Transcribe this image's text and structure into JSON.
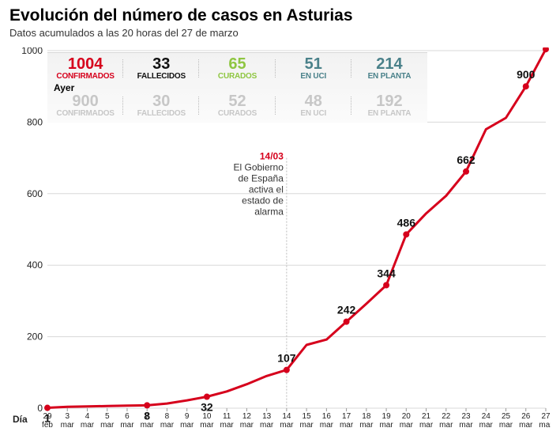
{
  "title": "Evolución del número de casos en Asturias",
  "title_fontsize": 21,
  "subtitle": "Datos acumulados a las 20 horas del 27 de marzo",
  "subtitle_fontsize": 13,
  "subtitle_color": "#333333",
  "stats_today": [
    {
      "value": "1004",
      "label": "CONFIRMADOS",
      "color": "#d6001c"
    },
    {
      "value": "33",
      "label": "FALLECIDOS",
      "color": "#111111"
    },
    {
      "value": "65",
      "label": "CURADOS",
      "color": "#8fc642"
    },
    {
      "value": "51",
      "label": "EN UCI",
      "color": "#4a818a"
    },
    {
      "value": "214",
      "label": "EN PLANTA",
      "color": "#4a818a"
    }
  ],
  "ayer_label": "Ayer",
  "ayer_fontsize": 12,
  "stats_yesterday": [
    {
      "value": "900",
      "label": "CONFIRMADOS",
      "color": "#c7c7c7"
    },
    {
      "value": "30",
      "label": "FALLECIDOS",
      "color": "#c7c7c7"
    },
    {
      "value": "52",
      "label": "CURADOS",
      "color": "#c7c7c7"
    },
    {
      "value": "48",
      "label": "EN UCI",
      "color": "#c7c7c7"
    },
    {
      "value": "192",
      "label": "EN PLANTA",
      "color": "#c7c7c7"
    }
  ],
  "stat_value_fontsize": 20,
  "stat_label_fontsize": 10,
  "chart": {
    "type": "line",
    "line_color": "#d6001c",
    "line_width": 3,
    "marker_color": "#d6001c",
    "marker_radius": 4,
    "grid_color": "#d8d8d8",
    "background_color": "#ffffff",
    "ylim": [
      0,
      1000
    ],
    "yticks": [
      0,
      200,
      400,
      600,
      800,
      1000
    ],
    "x_axis_title": "Día",
    "x_categories": [
      {
        "day": "29",
        "mon": "feb"
      },
      {
        "day": "3",
        "mon": "mar"
      },
      {
        "day": "4",
        "mon": "mar"
      },
      {
        "day": "5",
        "mon": "mar"
      },
      {
        "day": "6",
        "mon": "mar"
      },
      {
        "day": "7",
        "mon": "mar"
      },
      {
        "day": "8",
        "mon": "mar"
      },
      {
        "day": "9",
        "mon": "mar"
      },
      {
        "day": "10",
        "mon": "mar"
      },
      {
        "day": "11",
        "mon": "mar"
      },
      {
        "day": "12",
        "mon": "mar"
      },
      {
        "day": "13",
        "mon": "mar"
      },
      {
        "day": "14",
        "mon": "mar"
      },
      {
        "day": "15",
        "mon": "mar"
      },
      {
        "day": "16",
        "mon": "mar"
      },
      {
        "day": "17",
        "mon": "mar"
      },
      {
        "day": "18",
        "mon": "mar"
      },
      {
        "day": "19",
        "mon": "mar"
      },
      {
        "day": "20",
        "mon": "mar"
      },
      {
        "day": "21",
        "mon": "mar"
      },
      {
        "day": "22",
        "mon": "mar"
      },
      {
        "day": "23",
        "mon": "mar"
      },
      {
        "day": "24",
        "mon": "mar"
      },
      {
        "day": "25",
        "mon": "mar"
      },
      {
        "day": "26",
        "mon": "mar"
      },
      {
        "day": "27",
        "mon": "mar"
      }
    ],
    "values": [
      1,
      4,
      5,
      6,
      7,
      8,
      13,
      22,
      32,
      47,
      67,
      90,
      107,
      177,
      192,
      242,
      292,
      344,
      486,
      545,
      594,
      662,
      780,
      812,
      900,
      1004
    ],
    "labeled_indices_below": [
      0,
      5,
      8
    ],
    "labeled_indices_above": [
      12,
      15,
      17,
      18,
      21,
      24,
      25
    ],
    "labels": {
      "0": "1",
      "5": "8",
      "8": "32",
      "12": "107",
      "15": "242",
      "17": "344",
      "18": "486",
      "21": "662",
      "24": "900",
      "25": "1004"
    },
    "annotation": {
      "x_index": 12,
      "date": "14/03",
      "date_color": "#d6001c",
      "lines": [
        "El Gobierno",
        "de España",
        "activa el",
        "estado de",
        "alarma"
      ]
    }
  }
}
